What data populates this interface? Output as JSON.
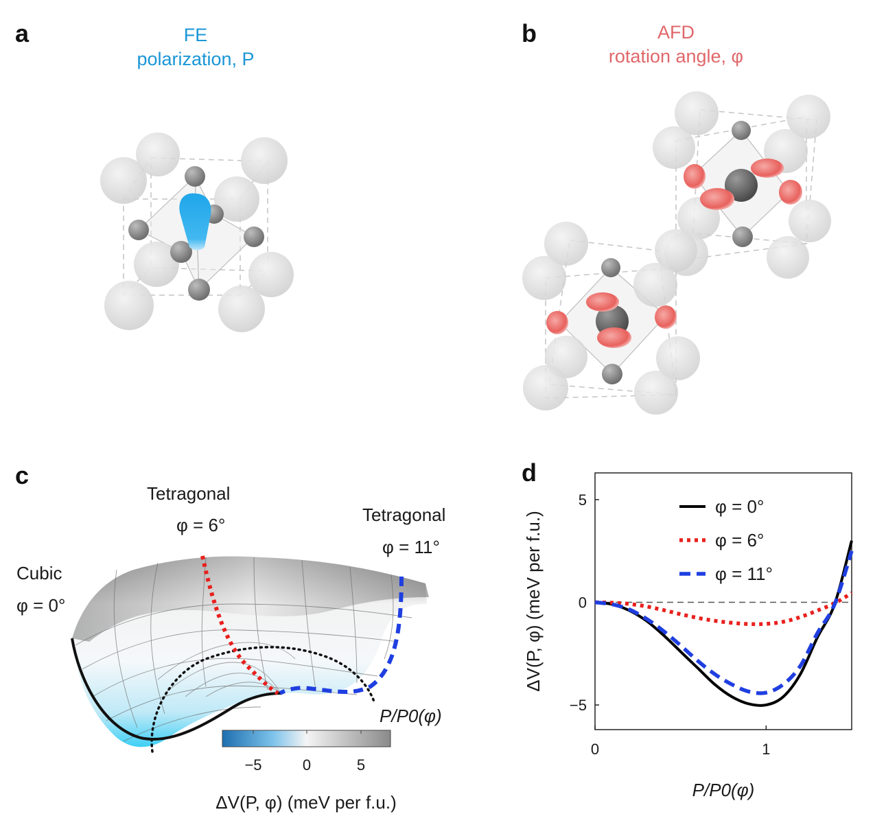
{
  "panels": {
    "a": {
      "letter": "a",
      "caption_line1": "FE",
      "caption_line2": "polarization, P",
      "color": "#1a96d6"
    },
    "b": {
      "letter": "b",
      "caption_line1": "AFD",
      "caption_line2": "rotation angle, φ",
      "color": "#e0676a"
    },
    "c": {
      "letter": "c",
      "labels": {
        "tetragonal_6_title": "Tetragonal",
        "tetragonal_6_angle": "φ = 6°",
        "tetragonal_11_title": "Tetragonal",
        "tetragonal_11_angle": "φ = 11°",
        "cubic_title": "Cubic",
        "cubic_angle": "φ = 0°",
        "axis_p": "P/P0(φ)"
      },
      "colorbar": {
        "ticks": [
          "−5",
          "0",
          "5"
        ],
        "label": "ΔV(P, φ) (meV per f.u.)",
        "color_low": "#1e6fb0",
        "color_mid": "#f4f4f4",
        "color_high": "#8a8a8a"
      }
    },
    "d": {
      "letter": "d"
    }
  },
  "chart_data": {
    "type": "line",
    "xlabel": "P/P0(φ)",
    "ylabel": "ΔV(P, φ) (meV per f.u.)",
    "xlim": [
      0,
      1.5
    ],
    "ylim": [
      -6.2,
      6.3
    ],
    "xticks": [
      "0",
      "1"
    ],
    "yticks": [
      "5",
      "0",
      "−5"
    ],
    "legend_position": "top-right",
    "reference_line": 0,
    "series": [
      {
        "name": "φ = 0°",
        "style": "solid",
        "color": "#000000",
        "x": [
          0,
          0.1,
          0.2,
          0.3,
          0.4,
          0.5,
          0.6,
          0.7,
          0.8,
          0.9,
          1.0,
          1.1,
          1.2,
          1.3,
          1.4,
          1.5
        ],
        "y": [
          0,
          -0.1,
          -0.4,
          -0.9,
          -1.6,
          -2.4,
          -3.2,
          -4.0,
          -4.6,
          -4.95,
          -5.0,
          -4.6,
          -3.5,
          -1.7,
          -0.1,
          3.0
        ]
      },
      {
        "name": "φ = 6°",
        "style": "dotted",
        "color": "#e8201d",
        "x": [
          0,
          0.1,
          0.2,
          0.3,
          0.4,
          0.5,
          0.6,
          0.7,
          0.8,
          0.9,
          1.0,
          1.1,
          1.2,
          1.3,
          1.4,
          1.5
        ],
        "y": [
          0,
          -0.02,
          -0.08,
          -0.2,
          -0.38,
          -0.58,
          -0.76,
          -0.9,
          -1.0,
          -1.06,
          -1.05,
          -0.95,
          -0.72,
          -0.4,
          -0.05,
          0.45
        ]
      },
      {
        "name": "φ = 11°",
        "style": "dashed",
        "color": "#1f3fe0",
        "x": [
          0,
          0.1,
          0.2,
          0.3,
          0.4,
          0.5,
          0.6,
          0.7,
          0.8,
          0.9,
          1.0,
          1.1,
          1.2,
          1.3,
          1.4,
          1.5
        ],
        "y": [
          0,
          -0.1,
          -0.35,
          -0.8,
          -1.4,
          -2.1,
          -2.85,
          -3.5,
          -4.0,
          -4.35,
          -4.4,
          -4.0,
          -3.1,
          -1.5,
          -0.1,
          2.5
        ]
      }
    ]
  }
}
